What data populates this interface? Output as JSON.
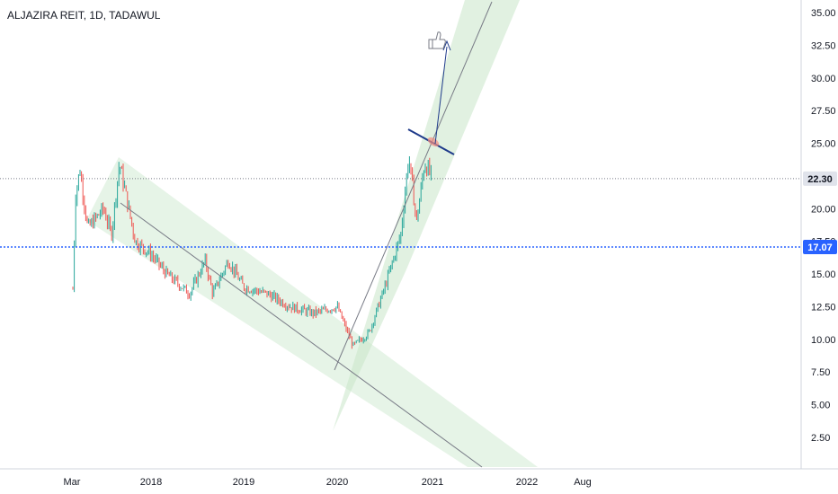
{
  "header": {
    "symbol_title": "ALJAZIRA REIT, 1D, TADAWUL"
  },
  "price_axis": {
    "ticks": [
      "35.00",
      "32.50",
      "30.00",
      "27.50",
      "25.00",
      "22.50",
      "20.00",
      "17.50",
      "15.00",
      "12.50",
      "10.00",
      "7.50",
      "5.00",
      "2.50"
    ]
  },
  "time_axis": {
    "ticks": [
      "Mar",
      "2018",
      "2019",
      "2020",
      "2021",
      "2022",
      "Aug"
    ]
  },
  "badges": {
    "last_price": "22.30",
    "level_line": "17.07"
  },
  "colors": {
    "up_candle": "#26a69a",
    "down_candle": "#ef5350",
    "channel_fill": "#c8e6c9",
    "trendline": "#787b86",
    "resistance_line": "#1e3a8a",
    "level_line": "#2962ff",
    "badge_last_price_bg": "#e0e3eb",
    "badge_level_bg": "#2962ff",
    "breakout_marker": "#f28b82"
  },
  "chart_data": {
    "type": "candlestick",
    "symbol": "ALJAZIRA REIT",
    "interval": "1D",
    "exchange": "TADAWUL",
    "ylim": [
      0,
      36
    ],
    "grid": false,
    "last_price": 22.3,
    "horizontal_level": 17.07,
    "price_path": [
      {
        "t": "2017-03",
        "price": 11.5
      },
      {
        "t": "2017-03-15",
        "price": 21.0
      },
      {
        "t": "2017-04",
        "price": 23.0
      },
      {
        "t": "2017-05",
        "price": 18.5
      },
      {
        "t": "2017-07",
        "price": 20.0
      },
      {
        "t": "2017-08",
        "price": 18.0
      },
      {
        "t": "2017-09",
        "price": 23.5
      },
      {
        "t": "2017-10",
        "price": 20.5
      },
      {
        "t": "2017-11",
        "price": 17.5
      },
      {
        "t": "2018-01",
        "price": 16.5
      },
      {
        "t": "2018-03",
        "price": 15.0
      },
      {
        "t": "2018-06",
        "price": 13.5
      },
      {
        "t": "2018-08",
        "price": 16.0
      },
      {
        "t": "2018-09",
        "price": 13.5
      },
      {
        "t": "2018-11",
        "price": 16.0
      },
      {
        "t": "2019-01",
        "price": 14.0
      },
      {
        "t": "2019-04",
        "price": 13.5
      },
      {
        "t": "2019-07",
        "price": 12.5
      },
      {
        "t": "2019-10",
        "price": 12.0
      },
      {
        "t": "2020-01",
        "price": 12.5
      },
      {
        "t": "2020-03",
        "price": 9.5
      },
      {
        "t": "2020-05",
        "price": 10.5
      },
      {
        "t": "2020-07",
        "price": 14.0
      },
      {
        "t": "2020-09",
        "price": 18.0
      },
      {
        "t": "2020-10",
        "price": 24.0
      },
      {
        "t": "2020-11",
        "price": 19.0
      },
      {
        "t": "2020-12",
        "price": 23.5
      },
      {
        "t": "2021-01",
        "price": 22.3
      }
    ],
    "annotations": [
      {
        "type": "descending_channel",
        "from": "2017-09",
        "to": "2022-05"
      },
      {
        "type": "ascending_channel",
        "from": "2020-01",
        "to": "2021-06"
      },
      {
        "type": "trendline",
        "from": "2017-09",
        "to": "2022-05"
      },
      {
        "type": "trendline",
        "from": "2020-01",
        "to": "2021-06"
      },
      {
        "type": "resistance_line",
        "from": "2020-11",
        "to": "2021-02",
        "price_start": 26.0,
        "price_end": 24.0
      },
      {
        "type": "arrow",
        "direction": "up",
        "target_price": 33.0
      },
      {
        "type": "thumbs_up_icon"
      }
    ]
  }
}
